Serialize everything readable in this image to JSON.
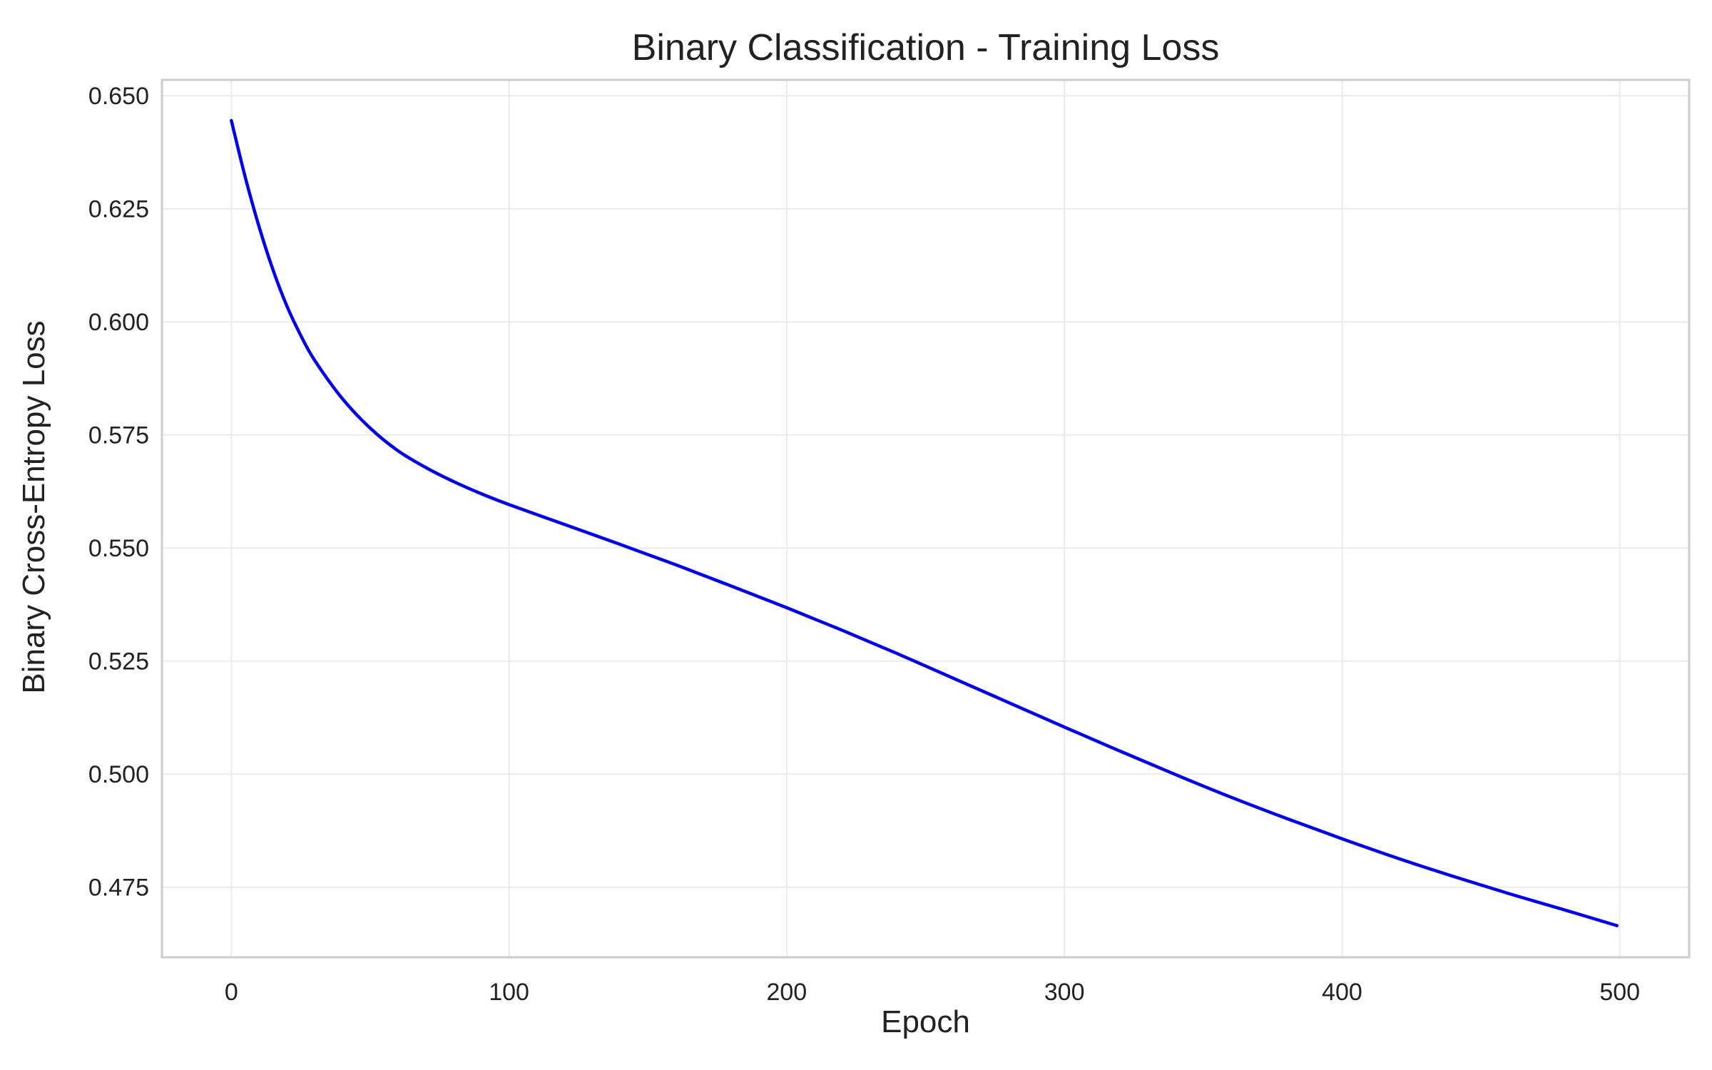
{
  "chart_data": {
    "type": "line",
    "title": "Binary Classification - Training Loss",
    "xlabel": "Epoch",
    "ylabel": "Binary Cross-Entropy Loss",
    "xlim": [
      -25,
      525
    ],
    "ylim": [
      0.4595,
      0.6535
    ],
    "x_ticks": [
      0,
      100,
      200,
      300,
      400,
      500
    ],
    "x_tick_labels": [
      "0",
      "100",
      "200",
      "300",
      "400",
      "500"
    ],
    "y_ticks": [
      0.475,
      0.5,
      0.525,
      0.55,
      0.575,
      0.6,
      0.625,
      0.65
    ],
    "y_tick_labels": [
      "0.475",
      "0.500",
      "0.525",
      "0.550",
      "0.575",
      "0.600",
      "0.625",
      "0.650"
    ],
    "grid": true,
    "series": [
      {
        "color": "#0000ee",
        "x": [
          0,
          5,
          10,
          15,
          20,
          25,
          30,
          40,
          50,
          60,
          70,
          80,
          90,
          100,
          120,
          140,
          160,
          180,
          200,
          220,
          240,
          260,
          280,
          300,
          320,
          340,
          360,
          380,
          400,
          420,
          440,
          460,
          480,
          499
        ],
        "y": [
          0.6445,
          0.632,
          0.621,
          0.6115,
          0.6035,
          0.597,
          0.5915,
          0.583,
          0.5765,
          0.5715,
          0.5678,
          0.5647,
          0.562,
          0.5596,
          0.5552,
          0.5508,
          0.5463,
          0.5416,
          0.5368,
          0.5318,
          0.5266,
          0.5212,
          0.5158,
          0.5104,
          0.5051,
          0.4999,
          0.4949,
          0.4902,
          0.4857,
          0.4814,
          0.4774,
          0.4736,
          0.47,
          0.4665
        ]
      }
    ]
  }
}
